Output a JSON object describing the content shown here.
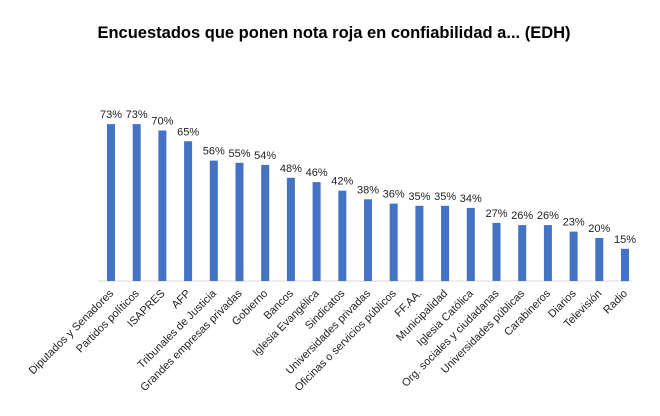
{
  "chart_data": {
    "type": "bar",
    "title": "Encuestados que ponen nota roja en confiabilidad a... (EDH)",
    "xlabel": "",
    "ylabel": "",
    "ylim": [
      0,
      80
    ],
    "grid": false,
    "legend": "none",
    "bar_color": "#4472C4",
    "categories": [
      "Diputados y Senadores",
      "Partidos políticos",
      "ISAPRES",
      "AFP",
      "Tribunales de Justicia",
      "Grandes empresas privadas",
      "Gobierno",
      "Bancos",
      "Iglesia Evangélica",
      "Sindicatos",
      "Universidades privadas",
      "Oficinas o servicios públicos",
      "FF.AA.",
      "Municipalidad",
      "Iglesia Católica",
      "Org. sociales y ciudadanas",
      "Universidades públicas",
      "Carabineros",
      "Diarios",
      "Televisión",
      "Radio"
    ],
    "values": [
      73,
      73,
      70,
      65,
      56,
      55,
      54,
      48,
      46,
      42,
      38,
      36,
      35,
      35,
      34,
      27,
      26,
      26,
      23,
      20,
      15
    ],
    "value_labels": [
      "73%",
      "73%",
      "70%",
      "65%",
      "56%",
      "55%",
      "54%",
      "48%",
      "46%",
      "42%",
      "38%",
      "36%",
      "35%",
      "35%",
      "34%",
      "27%",
      "26%",
      "26%",
      "23%",
      "20%",
      "15%"
    ]
  }
}
